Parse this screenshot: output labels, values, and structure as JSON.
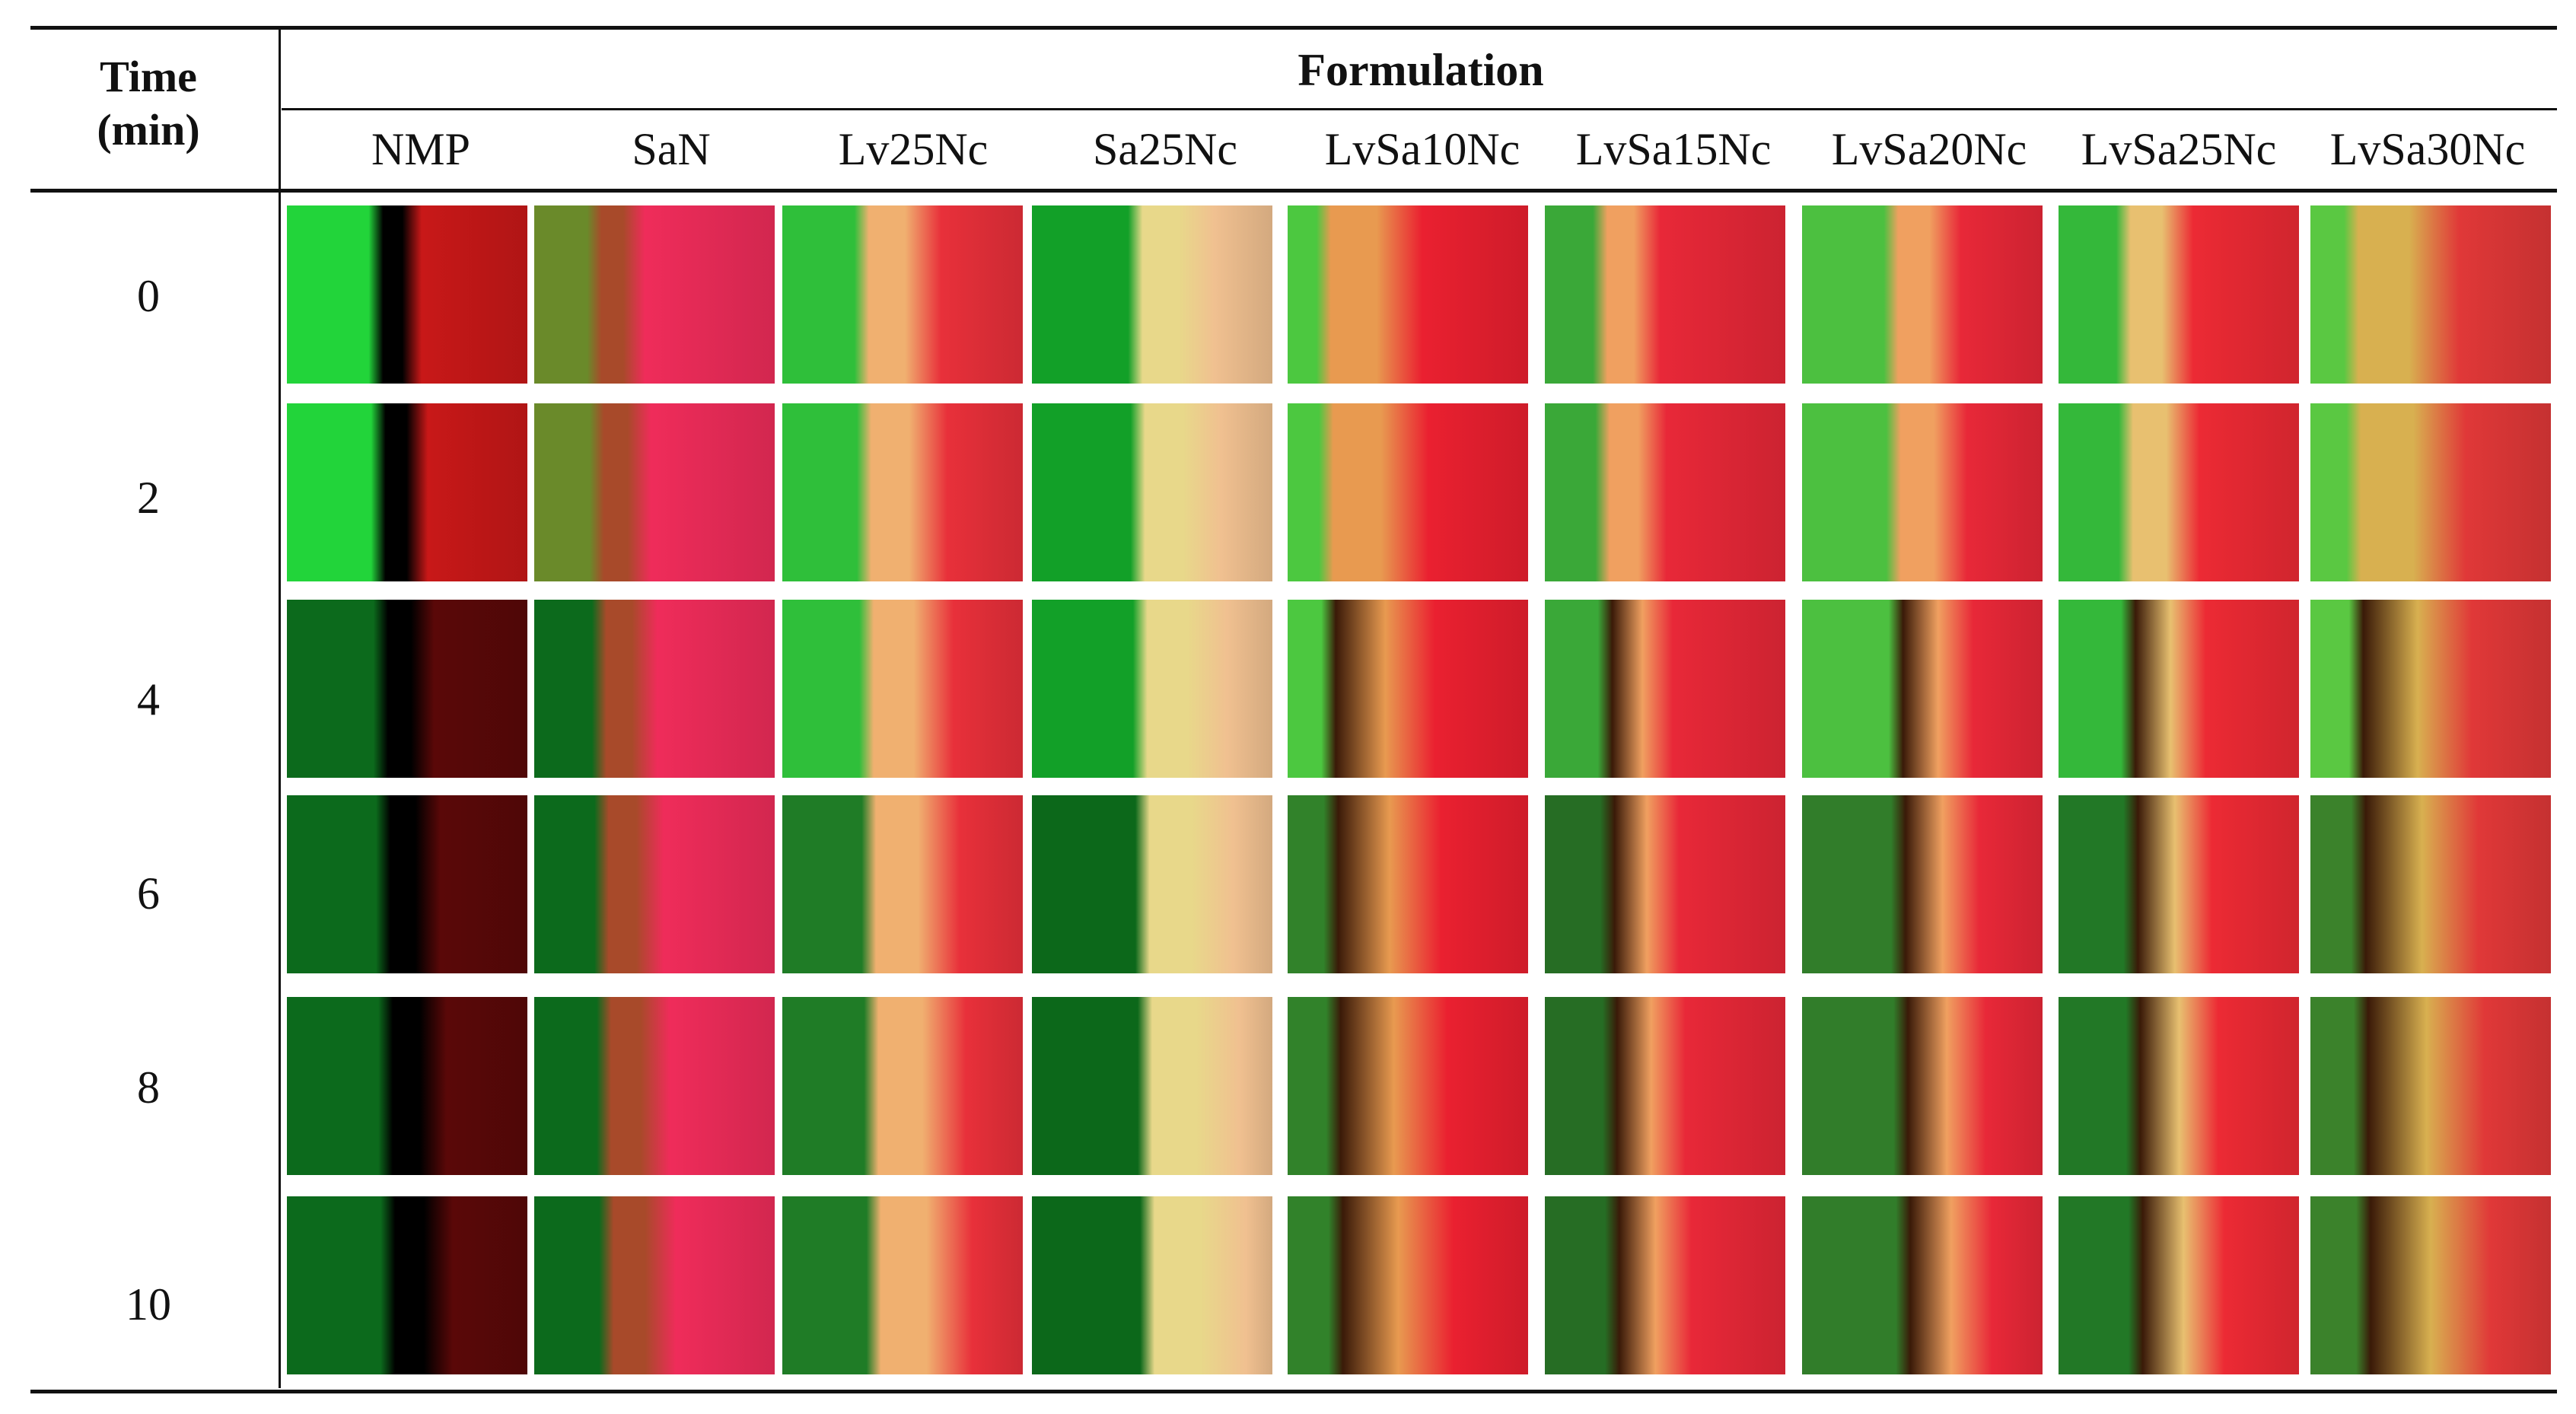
{
  "table": {
    "time_header_line1": "Time",
    "time_header_line2": "(min)",
    "formulation_header": "Formulation",
    "columns": [
      "NMP",
      "SaN",
      "Lv25Nc",
      "Sa25Nc",
      "LvSa10Nc",
      "LvSa15Nc",
      "LvSa20Nc",
      "LvSa25Nc",
      "LvSa30Nc"
    ],
    "rows": [
      "0",
      "2",
      "4",
      "6",
      "8",
      "10"
    ]
  },
  "colors": {
    "green": "#2fc83a",
    "red": "#e8202a",
    "pink": "#ef2c5a",
    "cream": "#f5c98a",
    "rule": "#111111"
  }
}
